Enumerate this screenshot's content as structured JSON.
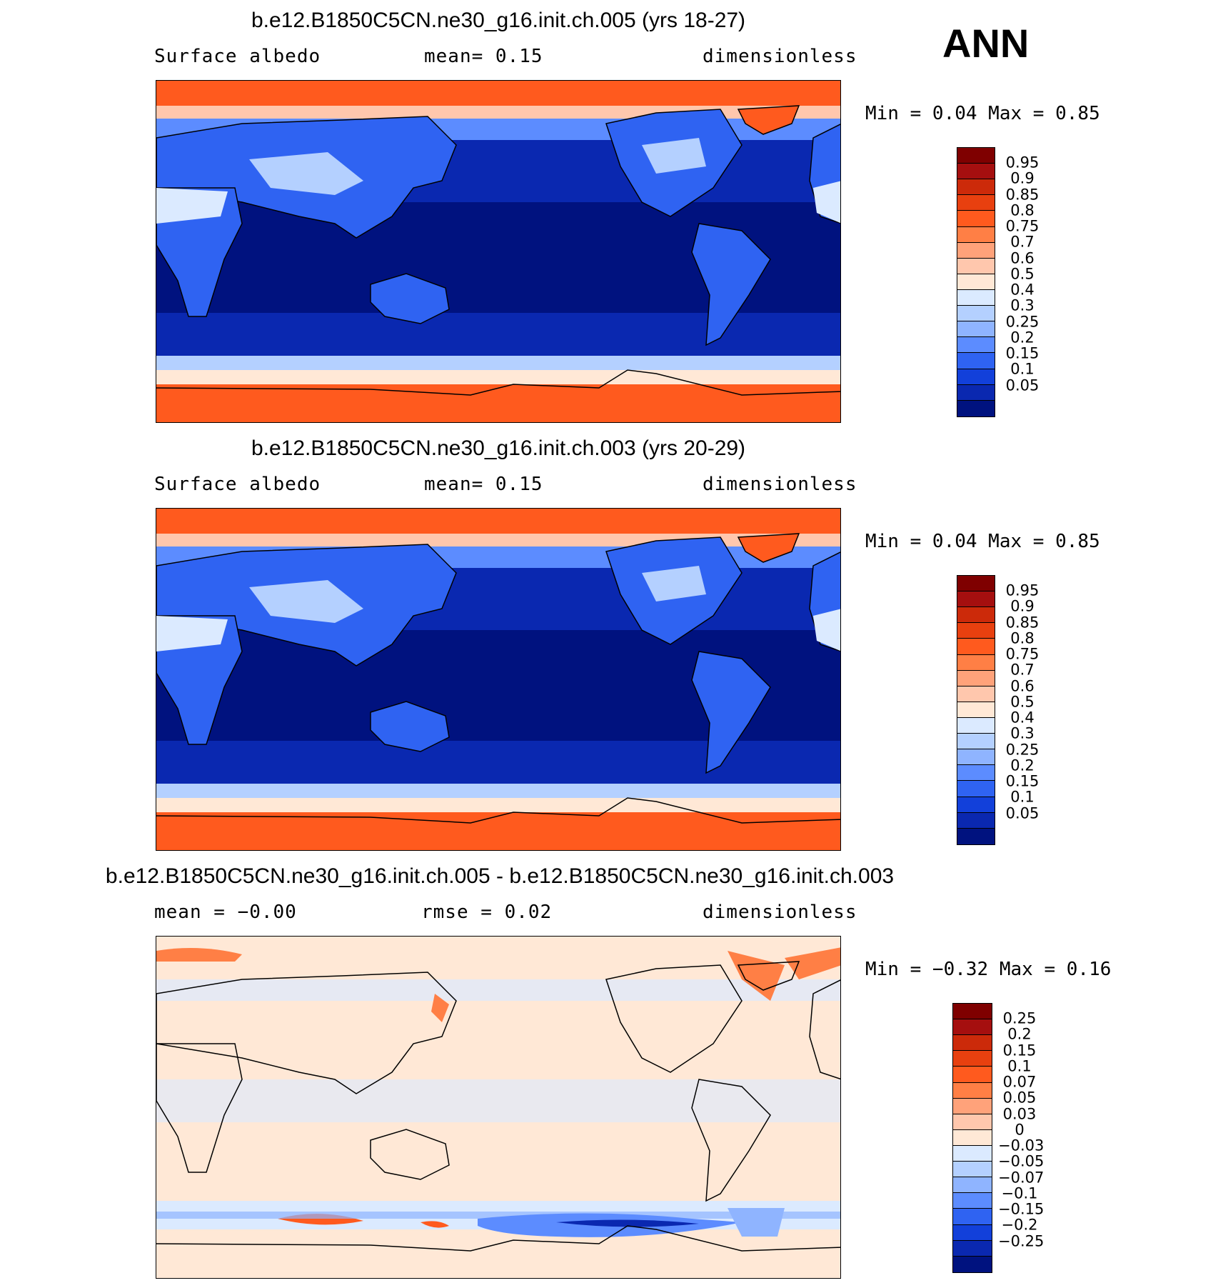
{
  "season": "ANN",
  "panels": [
    {
      "title": "b.e12.B1850C5CN.ne30_g16.init.ch.005 (yrs 18-27)",
      "left_label": "Surface  albedo",
      "center_label": "mean=    0.15",
      "right_label": "dimensionless",
      "minmax": "Min  =     0.04  Max  =     0.85",
      "kind": "field"
    },
    {
      "title": "b.e12.B1850C5CN.ne30_g16.init.ch.003 (yrs 20-29)",
      "left_label": "Surface  albedo",
      "center_label": "mean=    0.15",
      "right_label": "dimensionless",
      "minmax": "Min  =     0.04  Max  =     0.85",
      "kind": "field"
    },
    {
      "title": "b.e12.B1850C5CN.ne30_g16.init.ch.005 - b.e12.B1850C5CN.ne30_g16.init.ch.003",
      "left_label": "mean  =   −0.00",
      "center_label": "rmse  =    0.02",
      "right_label": "dimensionless",
      "minmax": "Min  =   −0.32  Max  =     0.16",
      "kind": "diff"
    }
  ],
  "colorbars": {
    "field": {
      "labels": [
        "0.95",
        "0.9",
        "0.85",
        "0.8",
        "0.75",
        "0.7",
        "0.6",
        "0.5",
        "0.4",
        "0.3",
        "0.25",
        "0.2",
        "0.15",
        "0.1",
        "0.05"
      ],
      "colors": [
        "#7f0000",
        "#a50f0f",
        "#cc2a0a",
        "#e8400f",
        "#ff5a1e",
        "#ff7f45",
        "#ffa27a",
        "#ffc7ad",
        "#ffe8d6",
        "#dbeaff",
        "#b4d0ff",
        "#8fb4ff",
        "#5c8cff",
        "#2f63f2",
        "#1240da",
        "#0a28b0",
        "#00127f"
      ]
    },
    "diff": {
      "labels": [
        "0.25",
        "0.2",
        "0.15",
        "0.1",
        "0.07",
        "0.05",
        "0.03",
        "0",
        "−0.03",
        "−0.05",
        "−0.07",
        "−0.1",
        "−0.15",
        "−0.2",
        "−0.25"
      ],
      "colors": [
        "#7f0000",
        "#a50f0f",
        "#cc2a0a",
        "#e8400f",
        "#ff5a1e",
        "#ff7f45",
        "#ffa27a",
        "#ffc7ad",
        "#ffe8d6",
        "#dbeaff",
        "#b4d0ff",
        "#8fb4ff",
        "#5c8cff",
        "#2f63f2",
        "#1240da",
        "#0a28b0",
        "#00127f"
      ]
    }
  },
  "colors": {
    "ice": "#ff5a1e",
    "ocean_tropical": "#00127f",
    "ocean_mid": "#0a28b0",
    "land": "#2f63f2",
    "desert": "#dbeaff",
    "diff_bg": "#ffe8d6",
    "diff_neg": "#dbeaff",
    "diff_strong_neg": "#0a28b0",
    "diff_pos": "#ff5a1e"
  }
}
